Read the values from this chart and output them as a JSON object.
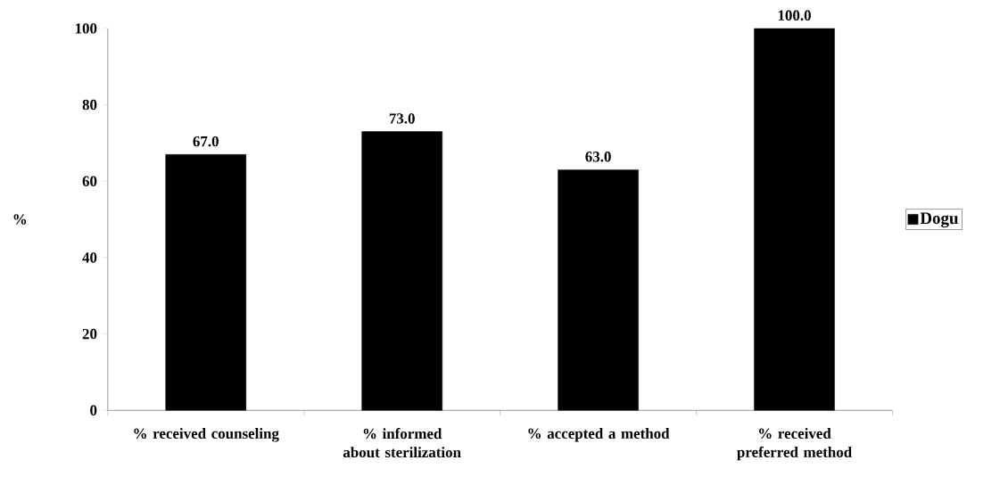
{
  "chart_data": {
    "type": "bar",
    "ylabel": "%",
    "categories": [
      "% received counseling",
      "% informed about sterilization",
      "% accepted a method",
      "% received preferred method"
    ],
    "series": [
      {
        "name": "Dogu",
        "color": "#000000",
        "values": [
          67.0,
          73.0,
          63.0,
          100.0
        ],
        "value_labels": [
          "67.0",
          "73.0",
          "63.0",
          "100.0"
        ]
      }
    ],
    "ylim": [
      0,
      100
    ],
    "yticks": [
      0,
      20,
      40,
      60,
      80,
      100
    ],
    "grid": false,
    "legend": "right"
  }
}
